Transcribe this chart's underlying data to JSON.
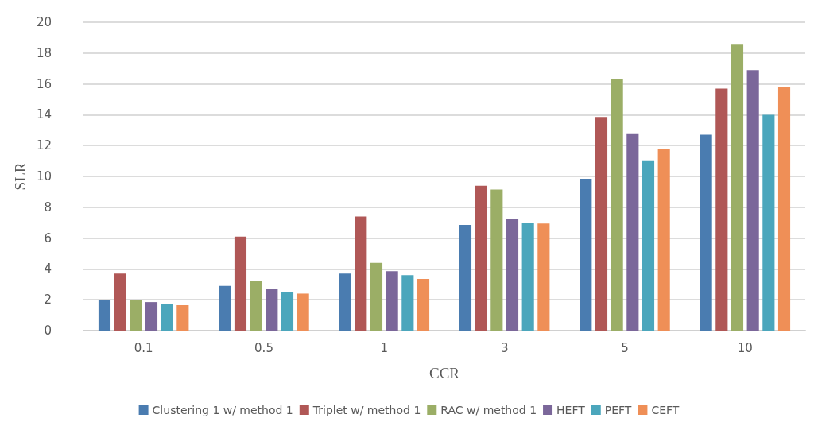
{
  "chart_data": {
    "type": "bar",
    "xlabel": "CCR",
    "ylabel": "SLR",
    "categories": [
      "0.1",
      "0.5",
      "1",
      "3",
      "5",
      "10"
    ],
    "series": [
      {
        "name": "Clustering 1 w/ method 1",
        "color": "#4a7cb0",
        "values": [
          2.0,
          2.9,
          3.7,
          6.85,
          9.85,
          12.7
        ]
      },
      {
        "name": "Triplet w/ method 1",
        "color": "#b05756",
        "values": [
          3.7,
          6.1,
          7.4,
          9.4,
          13.85,
          15.7
        ]
      },
      {
        "name": "RAC w/ method 1",
        "color": "#9bae66",
        "values": [
          2.0,
          3.2,
          4.4,
          9.15,
          16.3,
          18.6
        ]
      },
      {
        "name": "HEFT",
        "color": "#7b679a",
        "values": [
          1.85,
          2.7,
          3.85,
          7.25,
          12.8,
          16.9
        ]
      },
      {
        "name": "PEFT",
        "color": "#4ba6bc",
        "values": [
          1.7,
          2.5,
          3.6,
          7.0,
          11.05,
          14.0
        ]
      },
      {
        "name": "CEFT",
        "color": "#ef8f57",
        "values": [
          1.65,
          2.4,
          3.35,
          6.95,
          11.8,
          15.8
        ]
      }
    ],
    "ylim": [
      0,
      20
    ],
    "yticks": [
      0,
      2,
      4,
      6,
      8,
      10,
      12,
      14,
      16,
      18,
      20
    ],
    "grid": "y",
    "legend": "bottom"
  }
}
